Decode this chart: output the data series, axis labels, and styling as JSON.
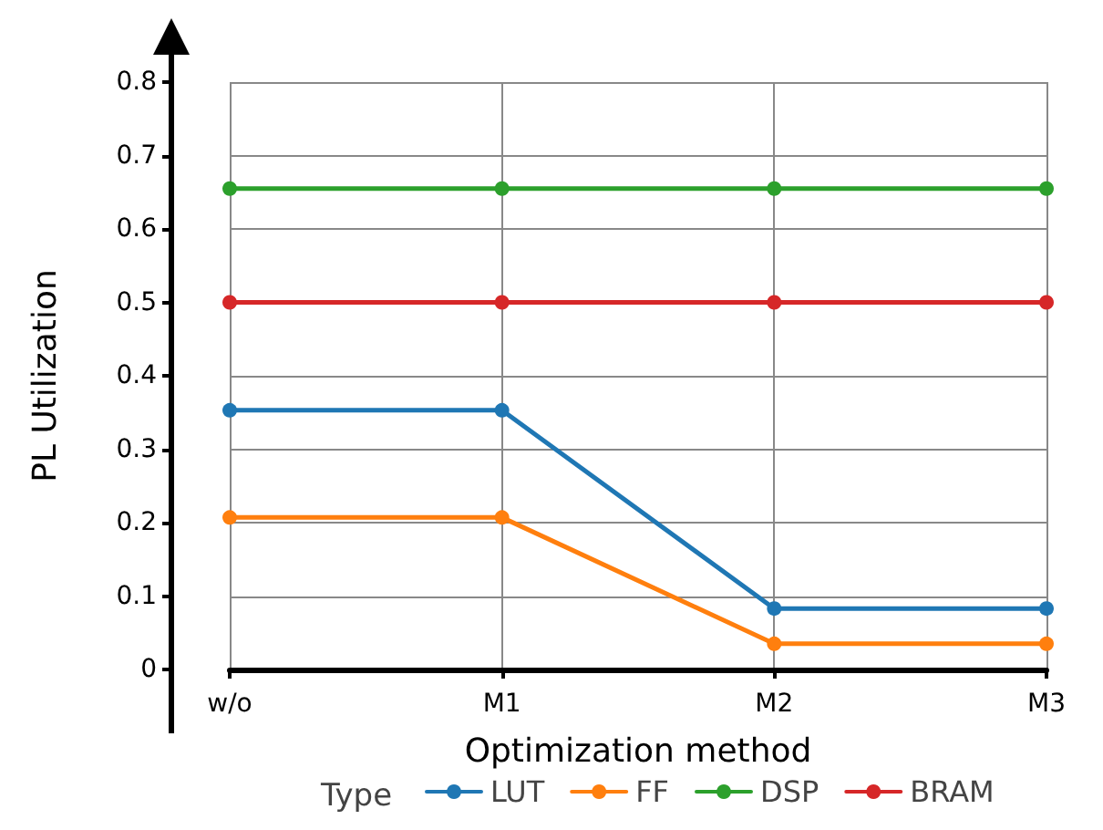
{
  "chart_data": {
    "type": "line",
    "xlabel": "Optimization method",
    "ylabel": "PL Utilization",
    "legend_title": "Type",
    "categories": [
      "w/o",
      "M1",
      "M2",
      "M3"
    ],
    "series": [
      {
        "name": "LUT",
        "color": "#1f77b4",
        "values": [
          0.353,
          0.353,
          0.083,
          0.083
        ]
      },
      {
        "name": "FF",
        "color": "#ff7f0e",
        "values": [
          0.207,
          0.207,
          0.035,
          0.035
        ]
      },
      {
        "name": "DSP",
        "color": "#2ca02c",
        "values": [
          0.655,
          0.655,
          0.655,
          0.655
        ]
      },
      {
        "name": "BRAM",
        "color": "#d62728",
        "values": [
          0.5,
          0.5,
          0.5,
          0.5
        ]
      }
    ],
    "ylim": [
      0,
      0.8
    ],
    "yticks": [
      0,
      0.1,
      0.2,
      0.3,
      0.4,
      0.5,
      0.6,
      0.7,
      0.8
    ],
    "grid": true,
    "legend": "bottom",
    "marker": "circle",
    "line_style": "solid"
  }
}
